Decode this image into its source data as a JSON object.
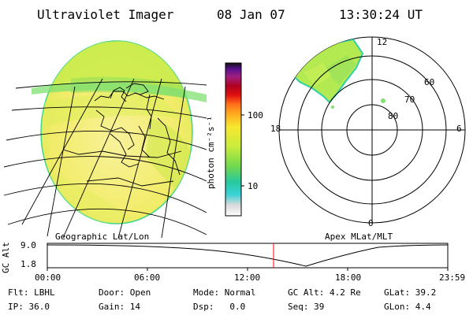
{
  "header": {
    "title": "Ultraviolet Imager",
    "date": "08 Jan 07",
    "time": "13:30:24 UT"
  },
  "colorbar": {
    "unit_label": "photon cm⁻²s⁻¹",
    "ticks": [
      "100",
      "10"
    ]
  },
  "polar": {
    "hour_labels": [
      "12",
      "18",
      "6",
      "0"
    ],
    "lat_labels": [
      "60",
      "70",
      "80"
    ]
  },
  "labels": {
    "left_panel": "Geographic Lat/Lon",
    "right_panel": "Apex MLat/MLT"
  },
  "timeline": {
    "axis_label": "GC Alt",
    "y_ticks": [
      "9.0",
      "1.8"
    ],
    "x_ticks": [
      "00:00",
      "06:00",
      "12:00",
      "18:00",
      "23:59"
    ]
  },
  "footer": {
    "row1": [
      {
        "label": "Flt:",
        "value": "LBHL"
      },
      {
        "label": "Door:",
        "value": "Open"
      },
      {
        "label": "Mode:",
        "value": "Normal"
      },
      {
        "label": "GC Alt:",
        "value": "4.2 Re"
      },
      {
        "label": "GLat:",
        "value": "39.2"
      }
    ],
    "row2": [
      {
        "label": "IP:",
        "value": "36.0"
      },
      {
        "label": "Gain:",
        "value": "14"
      },
      {
        "label": "Dsp:",
        "value": "0.0"
      },
      {
        "label": "Seq:",
        "value": "39"
      },
      {
        "label": "GLon:",
        "value": "4.4"
      }
    ]
  },
  "colors": {
    "disk_fill": "#f2ef6e",
    "disk_edge": "#3fd68a",
    "aurora": "#a8e84a",
    "aurora_edge": "#2ed0a8",
    "marker": "#ff0000"
  }
}
